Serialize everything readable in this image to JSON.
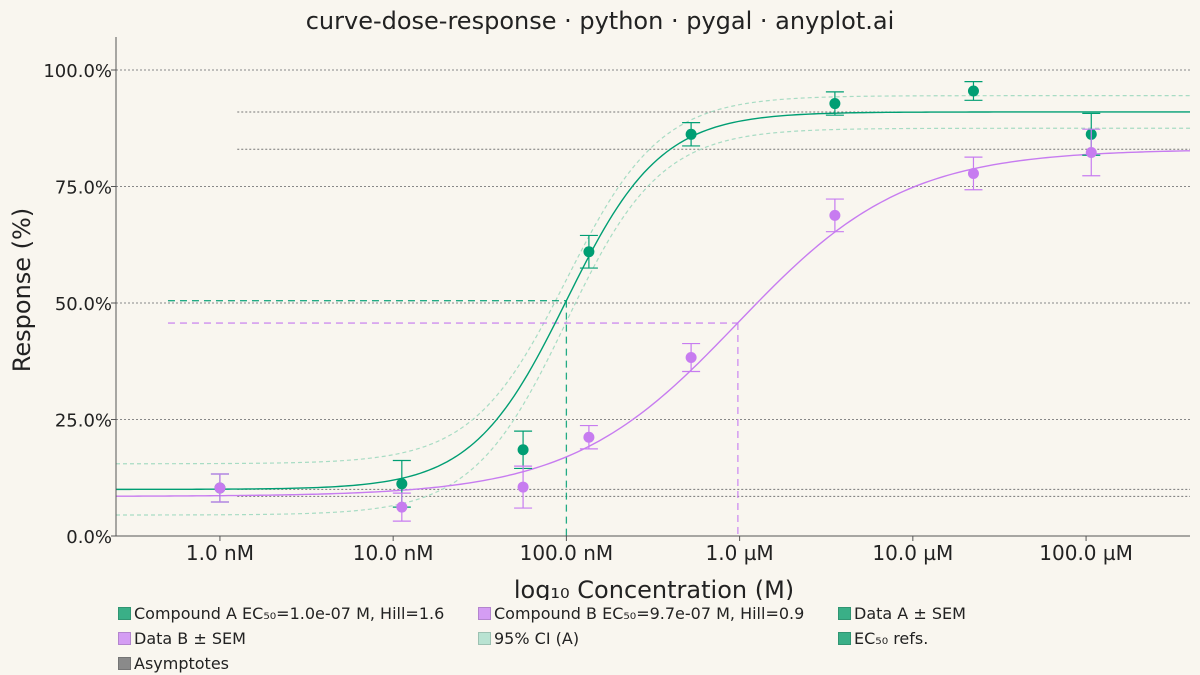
{
  "chart_data": {
    "type": "line",
    "title": "curve-dose-response · python · pygal · anyplot.ai",
    "xlabel": "log₁₀ Concentration (M)",
    "ylabel": "Response (%)",
    "x_scale": "log10",
    "xlim": [
      -9.6,
      -3.4
    ],
    "ylim": [
      0,
      1.0
    ],
    "x_ticks": [
      {
        "x": -9,
        "label": "1.0 nM"
      },
      {
        "x": -8,
        "label": "10.0 nM"
      },
      {
        "x": -7,
        "label": "100.0 nM"
      },
      {
        "x": -6,
        "label": "1.0 µM"
      },
      {
        "x": -5,
        "label": "10.0 µM"
      },
      {
        "x": -4,
        "label": "100.0 µM"
      }
    ],
    "y_ticks": [
      {
        "y": 0.0,
        "label": "0.0%"
      },
      {
        "y": 0.25,
        "label": "25.0%"
      },
      {
        "y": 0.5,
        "label": "50.0%"
      },
      {
        "y": 0.75,
        "label": "75.0%"
      },
      {
        "y": 1.0,
        "label": "100.0%"
      }
    ],
    "grid": true,
    "legend_position": "bottom",
    "colors": {
      "compound_a": "#009e73",
      "compound_b": "#c77cf0",
      "ci": "#a8dcc4",
      "asymptote": "#777777",
      "axis": "#555555",
      "grid": "#888888"
    },
    "curves": [
      {
        "key": "A",
        "bottom": 0.1,
        "top": 0.91,
        "log_ec50": -7.0,
        "hill": 1.6
      },
      {
        "key": "B",
        "bottom": 0.085,
        "top": 0.83,
        "log_ec50": -6.01,
        "hill": 0.9
      }
    ],
    "ci_band": {
      "lower": {
        "bottom": 0.045,
        "top": 0.875
      },
      "upper": {
        "bottom": 0.155,
        "top": 0.945
      },
      "log_ec50": -7.0,
      "hill": 1.6
    },
    "ec50_refs": [
      {
        "key": "A",
        "x": -7.0,
        "y": 0.505
      },
      {
        "key": "B",
        "x": -6.01,
        "y": 0.457
      }
    ],
    "asymptotes": [
      0.1,
      0.91,
      0.085,
      0.83
    ],
    "points": [
      {
        "name": "Data A",
        "key": "A",
        "x": [
          -9.0,
          -7.95,
          -7.25,
          -6.87,
          -6.28,
          -5.45,
          -4.65,
          -3.97
        ],
        "y": [
          0.103,
          0.112,
          0.185,
          0.61,
          0.862,
          0.928,
          0.955,
          0.862
        ],
        "sem": [
          0.03,
          0.05,
          0.04,
          0.035,
          0.025,
          0.025,
          0.02,
          0.045
        ]
      },
      {
        "name": "Data B",
        "key": "B",
        "x": [
          -9.0,
          -7.95,
          -7.25,
          -6.87,
          -6.28,
          -5.45,
          -4.65,
          -3.97
        ],
        "y": [
          0.103,
          0.062,
          0.105,
          0.212,
          0.383,
          0.688,
          0.778,
          0.823
        ],
        "sem": [
          0.03,
          0.03,
          0.045,
          0.025,
          0.03,
          0.035,
          0.035,
          0.05
        ]
      }
    ]
  },
  "legend": [
    {
      "label": "Compound A EC₅₀=1.0e-07 M, Hill=1.6",
      "color": "#3aaf87"
    },
    {
      "label": "Compound B EC₅₀=9.7e-07 M, Hill=0.9",
      "color": "#d49df3"
    },
    {
      "label": "Data A ± SEM",
      "color": "#3aaf87"
    },
    {
      "label": "Data B ± SEM",
      "color": "#d49df3"
    },
    {
      "label": "95% CI (A)",
      "color": "#b9e3d2"
    },
    {
      "label": "EC₅₀ refs.",
      "color": "#3aaf87"
    },
    {
      "label": "Asymptotes",
      "color": "#8a8a8a"
    }
  ]
}
